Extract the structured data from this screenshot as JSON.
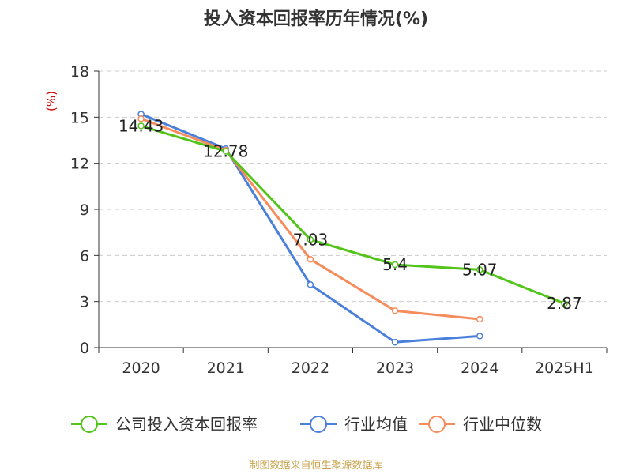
{
  "chart_data": {
    "type": "line",
    "title": "投入资本回报率历年情况(%)",
    "xlabel": "",
    "ylabel": "(%)",
    "categories": [
      "2020",
      "2021",
      "2022",
      "2023",
      "2024",
      "2025H1"
    ],
    "ylim": [
      0,
      18
    ],
    "yticks": [
      0,
      3,
      6,
      9,
      12,
      15,
      18
    ],
    "grid": true,
    "legend_position": "bottom",
    "series": [
      {
        "name": "公司投入资本回报率",
        "color": "#52c41a",
        "values": [
          14.43,
          12.78,
          7.03,
          5.4,
          5.07,
          2.87
        ],
        "labels": [
          "14.43",
          "12.78",
          "7.03",
          "5.4",
          "5.07",
          "2.87"
        ]
      },
      {
        "name": "行业均值",
        "color": "#4a7fdc",
        "values": [
          15.2,
          12.95,
          4.1,
          0.35,
          0.75,
          null
        ]
      },
      {
        "name": "行业中位数",
        "color": "#f68c5c",
        "values": [
          14.9,
          12.85,
          5.75,
          2.4,
          1.85,
          null
        ]
      }
    ]
  },
  "colors": {
    "axis": "#333333",
    "grid": "#cccccc",
    "ylabel": "#cc0000",
    "source": "#c8a24a"
  },
  "source_note": "制图数据来自恒生聚源数据库"
}
